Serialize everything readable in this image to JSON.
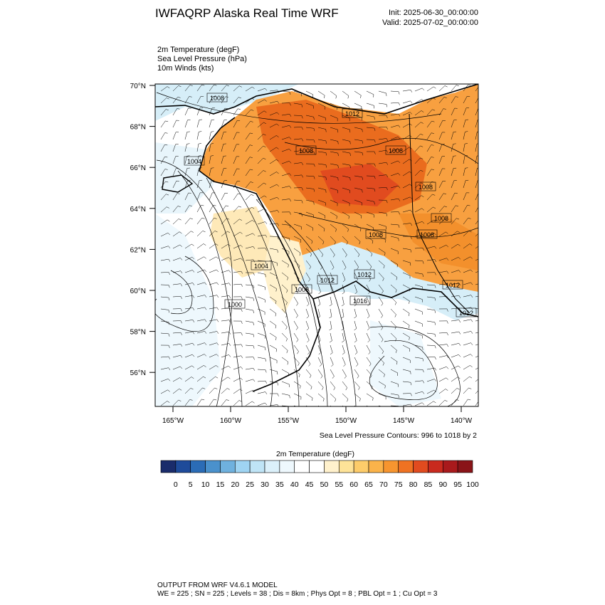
{
  "header": {
    "title": "IWFAQRP Alaska Real Time WRF",
    "init": "Init: 2025-06-30_00:00:00",
    "valid": "Valid: 2025-07-02_00:00:00"
  },
  "fields": [
    "2m Temperature   (degF)",
    "Sea Level Pressure   (hPa)",
    "10m Winds   (kts)"
  ],
  "map": {
    "lat_labels": [
      "70°N",
      "68°N",
      "66°N",
      "64°N",
      "62°N",
      "60°N",
      "58°N",
      "56°N"
    ],
    "lat_values": [
      70,
      68,
      66,
      64,
      62,
      60,
      58,
      56
    ],
    "lon_labels": [
      "165°W",
      "160°W",
      "155°W",
      "150°W",
      "145°W",
      "140°W"
    ],
    "lon_values": [
      -165,
      -160,
      -155,
      -150,
      -145,
      -140
    ],
    "isobar_labels": [
      "1008",
      "1012",
      "1004",
      "1008",
      "1008",
      "1008",
      "1008",
      "1008",
      "1008",
      "1004",
      "1012",
      "1012",
      "1008",
      "1012",
      "1016",
      "1012",
      "1000"
    ],
    "colors": {
      "ocean": "#ffffff",
      "cold": "#d6eef8",
      "warm": "#f8a040",
      "hot": "#e86a1c",
      "coast": "#000000"
    }
  },
  "contour_note": "Sea Level Pressure Contours: 996 to 1018 by 2",
  "colorbar": {
    "title": "2m Temperature  (degF)",
    "colors": [
      "#1a2c6b",
      "#1e4b9a",
      "#2b6cb6",
      "#4a91cc",
      "#6fb1de",
      "#9fd4f2",
      "#bfe4f6",
      "#dbf0fa",
      "#eef8fd",
      "#ffffff",
      "#ffffff",
      "#fff1cc",
      "#fee398",
      "#fdcc6a",
      "#fbb34a",
      "#f7952f",
      "#ef7222",
      "#e14b1f",
      "#c92a1e",
      "#a91a1c",
      "#8a1418"
    ],
    "labels": [
      "0",
      "5",
      "10",
      "15",
      "20",
      "25",
      "30",
      "35",
      "40",
      "45",
      "50",
      "55",
      "60",
      "65",
      "70",
      "75",
      "80",
      "85",
      "90",
      "95",
      "100"
    ]
  },
  "footer": {
    "line1": "OUTPUT FROM WRF V4.6.1 MODEL",
    "line2": "WE = 225 ; SN = 225 ; Levels = 38 ; Dis = 8km ; Phys Opt = 8 ; PBL Opt = 1 ; Cu Opt = 3"
  }
}
